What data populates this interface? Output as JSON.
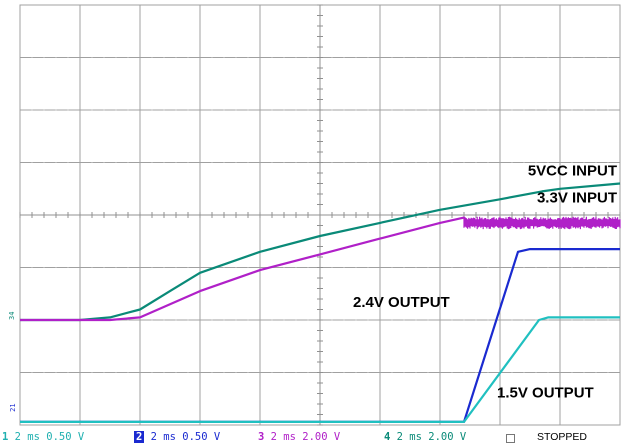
{
  "chart_data": {
    "type": "line",
    "title": "",
    "xlabel": "",
    "ylabel": "",
    "grid": true,
    "x_range_divisions": [
      0,
      10
    ],
    "y_range_divisions": [
      0,
      8
    ],
    "series": [
      {
        "name": "5VCC INPUT",
        "color": "#0a8a78",
        "label_color": "#000000",
        "points": [
          [
            0,
            2.0
          ],
          [
            0.5,
            2.0
          ],
          [
            1.0,
            2.0
          ],
          [
            1.5,
            2.05
          ],
          [
            2.0,
            2.2
          ],
          [
            2.5,
            2.55
          ],
          [
            3.0,
            2.9
          ],
          [
            4.0,
            3.3
          ],
          [
            5.0,
            3.6
          ],
          [
            6.0,
            3.85
          ],
          [
            7.0,
            4.1
          ],
          [
            8.0,
            4.3
          ],
          [
            8.7,
            4.45
          ],
          [
            9.0,
            4.5
          ],
          [
            10.0,
            4.6
          ]
        ]
      },
      {
        "name": "3.3V INPUT",
        "color": "#b020c8",
        "label_color": "#000000",
        "points": [
          [
            0,
            2.0
          ],
          [
            0.5,
            2.0
          ],
          [
            1.0,
            2.0
          ],
          [
            1.5,
            2.0
          ],
          [
            2.0,
            2.05
          ],
          [
            2.5,
            2.3
          ],
          [
            3.0,
            2.55
          ],
          [
            4.0,
            2.95
          ],
          [
            5.0,
            3.25
          ],
          [
            6.0,
            3.55
          ],
          [
            7.0,
            3.85
          ],
          [
            7.4,
            3.95
          ],
          [
            7.5,
            3.85
          ],
          [
            8.0,
            3.85
          ],
          [
            9.0,
            3.85
          ],
          [
            10.0,
            3.85
          ]
        ],
        "noise_after_x": 7.4,
        "noise_amplitude_divisions": 0.12
      },
      {
        "name": "2.4V OUTPUT",
        "color": "#1a2ad0",
        "label_color": "#000000",
        "points": [
          [
            0,
            0.06
          ],
          [
            7.0,
            0.06
          ],
          [
            7.4,
            0.06
          ],
          [
            8.3,
            3.3
          ],
          [
            8.5,
            3.35
          ],
          [
            10.0,
            3.35
          ]
        ]
      },
      {
        "name": "1.5V OUTPUT",
        "color": "#20c0c0",
        "label_color": "#000000",
        "points": [
          [
            0,
            0.06
          ],
          [
            7.0,
            0.06
          ],
          [
            7.4,
            0.06
          ],
          [
            8.65,
            2.0
          ],
          [
            8.8,
            2.05
          ],
          [
            10.0,
            2.05
          ]
        ]
      }
    ],
    "annotations": [
      {
        "text": "5VCC INPUT",
        "anchor": "right",
        "x": 9.95,
        "y": 4.75
      },
      {
        "text": "3.3V INPUT",
        "anchor": "right",
        "x": 9.95,
        "y": 4.24
      },
      {
        "text": "2.4V OUTPUT",
        "anchor": "start",
        "x": 5.55,
        "y": 2.25
      },
      {
        "text": "1.5V OUTPUT",
        "anchor": "start",
        "x": 7.95,
        "y": 0.52
      }
    ]
  },
  "status_bar": {
    "channels": [
      {
        "number": "1",
        "text": "2 ms 0.50 V",
        "color": "#20b0b0",
        "inverted": false
      },
      {
        "number": "2",
        "text": "2 ms 0.50 V",
        "color": "#1a2ad0",
        "inverted": true
      },
      {
        "number": "3",
        "text": "2 ms 2.00 V",
        "color": "#b020c8",
        "inverted": false
      },
      {
        "number": "4",
        "text": "2 ms 2.00 V",
        "color": "#0a8a78",
        "inverted": false
      }
    ],
    "state": "STOPPED"
  },
  "colors": {
    "grid_major": "#a0a0a0",
    "grid_minor": "#c8c8c8",
    "background": "#ffffff"
  }
}
